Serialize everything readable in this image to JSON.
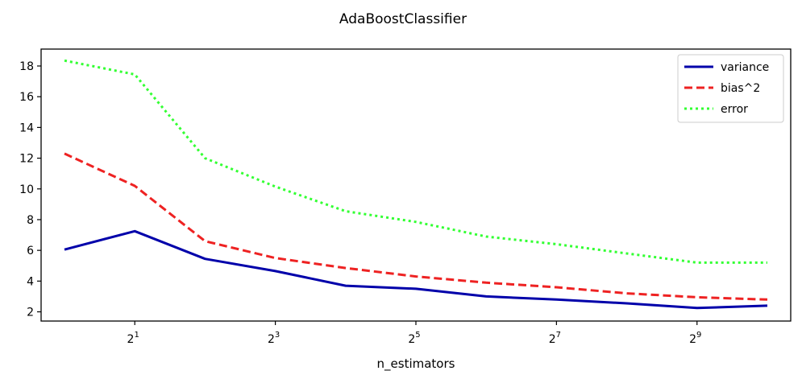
{
  "chart_data": {
    "type": "line",
    "title": "AdaBoostClassifier",
    "xlabel": "n_estimators",
    "ylabel": "",
    "x_scale": "log2",
    "x": [
      1,
      2,
      4,
      8,
      16,
      32,
      64,
      128,
      256,
      512,
      1024
    ],
    "xlim": [
      0.794,
      1290
    ],
    "ylim": [
      1.4,
      19.1
    ],
    "x_ticks": [
      2,
      8,
      32,
      128,
      512
    ],
    "x_tick_labels": [
      {
        "base": "2",
        "exp": "1"
      },
      {
        "base": "2",
        "exp": "3"
      },
      {
        "base": "2",
        "exp": "5"
      },
      {
        "base": "2",
        "exp": "7"
      },
      {
        "base": "2",
        "exp": "9"
      }
    ],
    "y_ticks": [
      2,
      4,
      6,
      8,
      10,
      12,
      14,
      16,
      18
    ],
    "y_tick_labels": [
      "2",
      "4",
      "6",
      "8",
      "10",
      "12",
      "14",
      "16",
      "18"
    ],
    "grid": false,
    "legend_position": "top-right",
    "series": [
      {
        "name": "variance",
        "color": "#0000aa",
        "dash": "solid",
        "values": [
          6.05,
          7.25,
          5.45,
          4.65,
          3.7,
          3.5,
          3.0,
          2.8,
          2.55,
          2.25,
          2.4
        ]
      },
      {
        "name": "bias^2",
        "color": "#ee2222",
        "dash": "dashed",
        "values": [
          12.3,
          10.2,
          6.6,
          5.5,
          4.85,
          4.3,
          3.9,
          3.6,
          3.2,
          2.95,
          2.8
        ]
      },
      {
        "name": "error",
        "color": "#33ff33",
        "dash": "dotted",
        "values": [
          18.35,
          17.45,
          12.0,
          10.15,
          8.55,
          7.85,
          6.9,
          6.4,
          5.8,
          5.2,
          5.2
        ]
      }
    ]
  }
}
